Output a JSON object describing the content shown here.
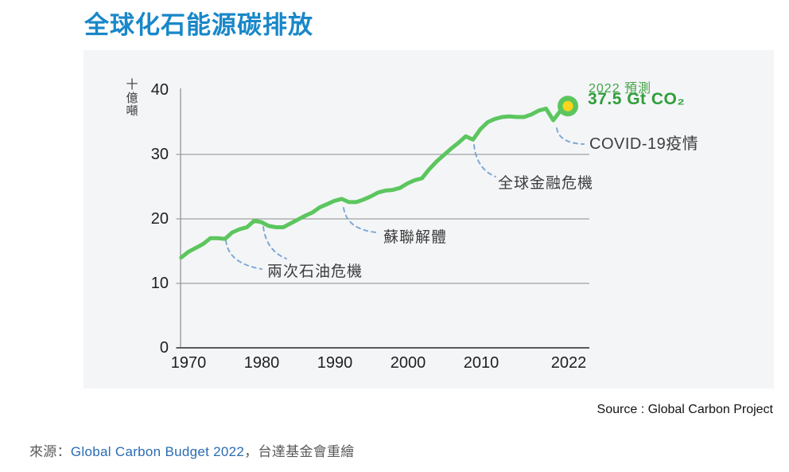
{
  "page": {
    "title": "全球化石能源碳排放",
    "source_note": "Source : Global Carbon Project",
    "caption": {
      "prefix": "來源：",
      "link": "Global Carbon Budget 2022",
      "suffix": "，台達基金會重繪"
    }
  },
  "chart_data": {
    "type": "line",
    "title": "全球化石能源碳排放",
    "ylabel": "十億噸",
    "xlabel": "",
    "ylim": [
      0,
      40
    ],
    "xlim": [
      1969,
      2022
    ],
    "grid": "horizontal-only",
    "legend": "none",
    "line_color": "#5cc65e",
    "y_tick_labels": [
      "0",
      "10",
      "20",
      "30",
      "40"
    ],
    "y_tick_values": [
      0,
      10,
      20,
      30,
      40
    ],
    "x_tick_labels": [
      "1970",
      "1980",
      "1990",
      "2000",
      "2010",
      "2022"
    ],
    "x_tick_values": [
      1970,
      1980,
      1990,
      2000,
      2010,
      2022
    ],
    "series": [
      {
        "name": "全球化石能源碳排放 (Gt CO₂)",
        "x": [
          1969,
          1970,
          1971,
          1972,
          1973,
          1974,
          1975,
          1976,
          1977,
          1978,
          1979,
          1980,
          1981,
          1982,
          1983,
          1984,
          1985,
          1986,
          1987,
          1988,
          1989,
          1990,
          1991,
          1992,
          1993,
          1994,
          1995,
          1996,
          1997,
          1998,
          1999,
          2000,
          2001,
          2002,
          2003,
          2004,
          2005,
          2006,
          2007,
          2008,
          2009,
          2010,
          2011,
          2012,
          2013,
          2014,
          2015,
          2016,
          2017,
          2018,
          2019,
          2020,
          2021,
          2022
        ],
        "values": [
          14.0,
          14.9,
          15.5,
          16.1,
          17.0,
          17.0,
          16.9,
          17.9,
          18.4,
          18.7,
          19.7,
          19.5,
          18.9,
          18.7,
          18.7,
          19.3,
          19.9,
          20.5,
          21.0,
          21.8,
          22.3,
          22.8,
          23.1,
          22.6,
          22.6,
          23.0,
          23.5,
          24.1,
          24.4,
          24.5,
          24.8,
          25.5,
          26.0,
          26.3,
          27.7,
          28.9,
          29.9,
          30.9,
          31.8,
          32.8,
          32.3,
          33.9,
          35.0,
          35.5,
          35.8,
          35.9,
          35.8,
          35.8,
          36.2,
          36.8,
          37.1,
          35.3,
          36.8,
          37.5
        ]
      }
    ],
    "end_marker": {
      "year": 2022,
      "value": 37.5,
      "outer_color": "#5cc65e",
      "inner_color": "#ffd41c"
    },
    "forecast_label": {
      "line1": "2022 預測",
      "line2": "37.5 Gt CO₂"
    },
    "annotations": [
      {
        "text": "兩次石油危機"
      },
      {
        "text": "蘇聯解體"
      },
      {
        "text": "全球金融危機"
      },
      {
        "text": "COVID-19疫情"
      }
    ]
  }
}
